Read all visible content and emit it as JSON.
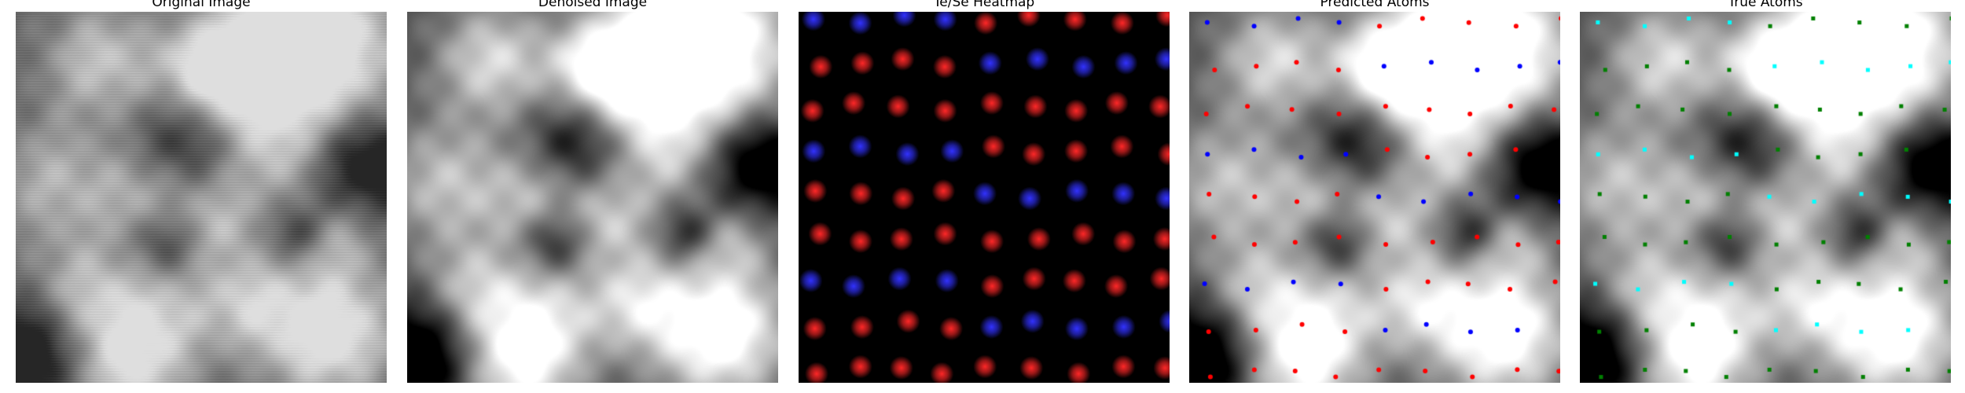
{
  "panels": [
    {
      "title": "Original Image",
      "kind": "grayscale-noisy"
    },
    {
      "title": "Denoised Image",
      "kind": "grayscale-smooth"
    },
    {
      "title": "Te/Se Heatmap",
      "kind": "heatmap"
    },
    {
      "title": "Predicted Atoms",
      "kind": "atoms-predicted"
    },
    {
      "title": "True Atoms",
      "kind": "atoms-true"
    }
  ],
  "colors": {
    "te_predicted": "#ff0000",
    "se_predicted": "#0000ff",
    "te_true": "#008000",
    "se_true": "#00ffff",
    "heatmap_background": "#000000"
  }
}
